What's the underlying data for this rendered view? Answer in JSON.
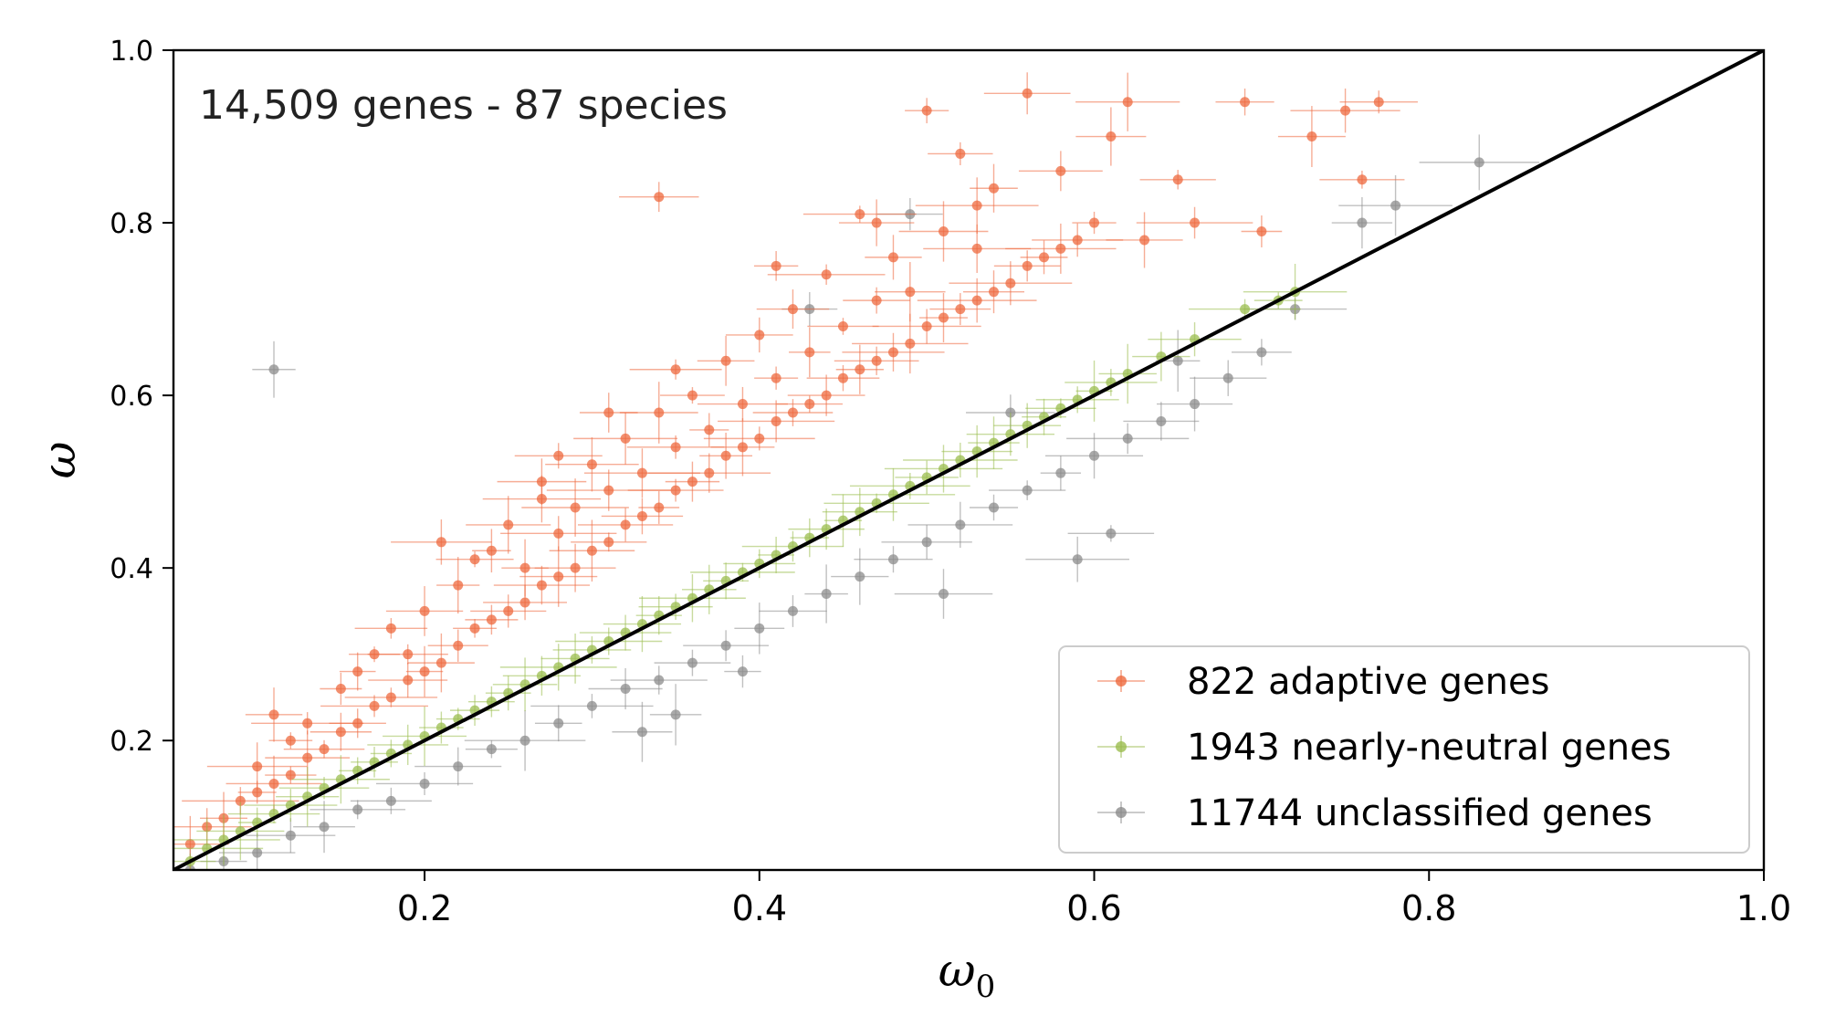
{
  "chart_data": {
    "type": "scatter",
    "annotation": "14,509 genes - 87 species",
    "xlabel": "ω",
    "xlabel_sub": "0",
    "ylabel": "ω",
    "xlim": [
      0.05,
      1.0
    ],
    "ylim": [
      0.05,
      1.0
    ],
    "x_ticks": [
      0.2,
      0.4,
      0.6,
      0.8,
      1.0
    ],
    "x_tick_labels": [
      "0.2",
      "0.4",
      "0.6",
      "0.8",
      "1.0"
    ],
    "y_ticks": [
      0.2,
      0.4,
      0.6,
      0.8,
      1.0
    ],
    "y_tick_labels": [
      "0.2",
      "0.4",
      "0.6",
      "0.8",
      "1.0"
    ],
    "grid": false,
    "legend_position": "bottom-right",
    "reference_line": {
      "type": "identity",
      "x": [
        0.05,
        1.0
      ],
      "y": [
        0.05,
        1.0
      ],
      "color": "#000000"
    },
    "series": [
      {
        "name": "822 adaptive genes",
        "color": "#ee6a3f",
        "count": 822,
        "points": [
          [
            0.06,
            0.08
          ],
          [
            0.07,
            0.1
          ],
          [
            0.08,
            0.11
          ],
          [
            0.09,
            0.13
          ],
          [
            0.1,
            0.14
          ],
          [
            0.1,
            0.17
          ],
          [
            0.11,
            0.15
          ],
          [
            0.11,
            0.23
          ],
          [
            0.12,
            0.16
          ],
          [
            0.12,
            0.2
          ],
          [
            0.13,
            0.18
          ],
          [
            0.13,
            0.22
          ],
          [
            0.14,
            0.19
          ],
          [
            0.15,
            0.21
          ],
          [
            0.15,
            0.26
          ],
          [
            0.16,
            0.22
          ],
          [
            0.17,
            0.24
          ],
          [
            0.17,
            0.3
          ],
          [
            0.18,
            0.25
          ],
          [
            0.18,
            0.33
          ],
          [
            0.19,
            0.27
          ],
          [
            0.2,
            0.28
          ],
          [
            0.2,
            0.35
          ],
          [
            0.21,
            0.29
          ],
          [
            0.21,
            0.43
          ],
          [
            0.22,
            0.31
          ],
          [
            0.22,
            0.38
          ],
          [
            0.23,
            0.33
          ],
          [
            0.24,
            0.34
          ],
          [
            0.24,
            0.42
          ],
          [
            0.25,
            0.35
          ],
          [
            0.25,
            0.45
          ],
          [
            0.26,
            0.36
          ],
          [
            0.26,
            0.4
          ],
          [
            0.27,
            0.38
          ],
          [
            0.27,
            0.48
          ],
          [
            0.28,
            0.39
          ],
          [
            0.28,
            0.44
          ],
          [
            0.29,
            0.4
          ],
          [
            0.29,
            0.47
          ],
          [
            0.3,
            0.42
          ],
          [
            0.3,
            0.52
          ],
          [
            0.31,
            0.43
          ],
          [
            0.31,
            0.49
          ],
          [
            0.32,
            0.45
          ],
          [
            0.32,
            0.55
          ],
          [
            0.33,
            0.46
          ],
          [
            0.33,
            0.51
          ],
          [
            0.34,
            0.47
          ],
          [
            0.34,
            0.58
          ],
          [
            0.35,
            0.49
          ],
          [
            0.35,
            0.54
          ],
          [
            0.36,
            0.5
          ],
          [
            0.36,
            0.6
          ],
          [
            0.37,
            0.51
          ],
          [
            0.37,
            0.56
          ],
          [
            0.38,
            0.53
          ],
          [
            0.38,
            0.64
          ],
          [
            0.39,
            0.54
          ],
          [
            0.39,
            0.59
          ],
          [
            0.4,
            0.55
          ],
          [
            0.4,
            0.67
          ],
          [
            0.41,
            0.57
          ],
          [
            0.41,
            0.62
          ],
          [
            0.42,
            0.58
          ],
          [
            0.42,
            0.7
          ],
          [
            0.43,
            0.59
          ],
          [
            0.43,
            0.65
          ],
          [
            0.44,
            0.6
          ],
          [
            0.44,
            0.74
          ],
          [
            0.45,
            0.62
          ],
          [
            0.45,
            0.68
          ],
          [
            0.46,
            0.63
          ],
          [
            0.46,
            0.81
          ],
          [
            0.47,
            0.64
          ],
          [
            0.47,
            0.71
          ],
          [
            0.48,
            0.65
          ],
          [
            0.48,
            0.76
          ],
          [
            0.49,
            0.66
          ],
          [
            0.49,
            0.72
          ],
          [
            0.5,
            0.68
          ],
          [
            0.5,
            0.93
          ],
          [
            0.51,
            0.69
          ],
          [
            0.51,
            0.79
          ],
          [
            0.52,
            0.7
          ],
          [
            0.52,
            0.88
          ],
          [
            0.53,
            0.71
          ],
          [
            0.53,
            0.77
          ],
          [
            0.54,
            0.72
          ],
          [
            0.54,
            0.84
          ],
          [
            0.55,
            0.73
          ],
          [
            0.56,
            0.75
          ],
          [
            0.56,
            0.95
          ],
          [
            0.57,
            0.76
          ],
          [
            0.58,
            0.77
          ],
          [
            0.58,
            0.86
          ],
          [
            0.59,
            0.78
          ],
          [
            0.6,
            0.8
          ],
          [
            0.61,
            0.9
          ],
          [
            0.62,
            0.94
          ],
          [
            0.63,
            0.78
          ],
          [
            0.65,
            0.85
          ],
          [
            0.66,
            0.8
          ],
          [
            0.69,
            0.94
          ],
          [
            0.7,
            0.79
          ],
          [
            0.73,
            0.9
          ],
          [
            0.75,
            0.93
          ],
          [
            0.76,
            0.85
          ],
          [
            0.77,
            0.94
          ],
          [
            0.34,
            0.83
          ],
          [
            0.31,
            0.58
          ],
          [
            0.28,
            0.53
          ],
          [
            0.27,
            0.5
          ],
          [
            0.19,
            0.3
          ],
          [
            0.16,
            0.28
          ],
          [
            0.23,
            0.41
          ],
          [
            0.35,
            0.63
          ],
          [
            0.41,
            0.75
          ],
          [
            0.47,
            0.8
          ],
          [
            0.53,
            0.82
          ]
        ]
      },
      {
        "name": "1943 nearly-neutral genes",
        "color": "#9bbd4f",
        "count": 1943,
        "points": [
          [
            0.06,
            0.06
          ],
          [
            0.07,
            0.075
          ],
          [
            0.08,
            0.085
          ],
          [
            0.09,
            0.095
          ],
          [
            0.1,
            0.105
          ],
          [
            0.11,
            0.115
          ],
          [
            0.12,
            0.125
          ],
          [
            0.13,
            0.135
          ],
          [
            0.14,
            0.145
          ],
          [
            0.15,
            0.155
          ],
          [
            0.16,
            0.165
          ],
          [
            0.17,
            0.175
          ],
          [
            0.18,
            0.185
          ],
          [
            0.19,
            0.195
          ],
          [
            0.2,
            0.205
          ],
          [
            0.21,
            0.215
          ],
          [
            0.22,
            0.225
          ],
          [
            0.23,
            0.235
          ],
          [
            0.24,
            0.245
          ],
          [
            0.25,
            0.255
          ],
          [
            0.26,
            0.265
          ],
          [
            0.27,
            0.275
          ],
          [
            0.28,
            0.285
          ],
          [
            0.29,
            0.295
          ],
          [
            0.3,
            0.305
          ],
          [
            0.31,
            0.315
          ],
          [
            0.32,
            0.325
          ],
          [
            0.33,
            0.335
          ],
          [
            0.34,
            0.345
          ],
          [
            0.35,
            0.355
          ],
          [
            0.36,
            0.365
          ],
          [
            0.37,
            0.375
          ],
          [
            0.38,
            0.385
          ],
          [
            0.39,
            0.395
          ],
          [
            0.4,
            0.405
          ],
          [
            0.41,
            0.415
          ],
          [
            0.42,
            0.425
          ],
          [
            0.43,
            0.435
          ],
          [
            0.44,
            0.445
          ],
          [
            0.45,
            0.455
          ],
          [
            0.46,
            0.465
          ],
          [
            0.47,
            0.475
          ],
          [
            0.48,
            0.485
          ],
          [
            0.49,
            0.495
          ],
          [
            0.5,
            0.505
          ],
          [
            0.51,
            0.515
          ],
          [
            0.52,
            0.525
          ],
          [
            0.53,
            0.535
          ],
          [
            0.54,
            0.545
          ],
          [
            0.55,
            0.555
          ],
          [
            0.56,
            0.565
          ],
          [
            0.57,
            0.575
          ],
          [
            0.58,
            0.585
          ],
          [
            0.59,
            0.595
          ],
          [
            0.6,
            0.605
          ],
          [
            0.61,
            0.615
          ],
          [
            0.62,
            0.625
          ],
          [
            0.64,
            0.645
          ],
          [
            0.66,
            0.665
          ],
          [
            0.69,
            0.7
          ],
          [
            0.71,
            0.71
          ],
          [
            0.72,
            0.72
          ]
        ]
      },
      {
        "name": "11744 unclassified genes",
        "color": "#8c8c8c",
        "count": 11744,
        "points": [
          [
            0.06,
            0.05
          ],
          [
            0.08,
            0.06
          ],
          [
            0.1,
            0.07
          ],
          [
            0.11,
            0.63
          ],
          [
            0.12,
            0.09
          ],
          [
            0.14,
            0.1
          ],
          [
            0.16,
            0.12
          ],
          [
            0.18,
            0.13
          ],
          [
            0.2,
            0.15
          ],
          [
            0.22,
            0.17
          ],
          [
            0.24,
            0.19
          ],
          [
            0.26,
            0.2
          ],
          [
            0.28,
            0.22
          ],
          [
            0.3,
            0.24
          ],
          [
            0.32,
            0.26
          ],
          [
            0.34,
            0.27
          ],
          [
            0.35,
            0.23
          ],
          [
            0.36,
            0.29
          ],
          [
            0.38,
            0.31
          ],
          [
            0.4,
            0.33
          ],
          [
            0.42,
            0.35
          ],
          [
            0.44,
            0.37
          ],
          [
            0.46,
            0.39
          ],
          [
            0.48,
            0.41
          ],
          [
            0.5,
            0.43
          ],
          [
            0.52,
            0.45
          ],
          [
            0.54,
            0.47
          ],
          [
            0.56,
            0.49
          ],
          [
            0.58,
            0.51
          ],
          [
            0.6,
            0.53
          ],
          [
            0.62,
            0.55
          ],
          [
            0.64,
            0.57
          ],
          [
            0.66,
            0.59
          ],
          [
            0.68,
            0.62
          ],
          [
            0.7,
            0.65
          ],
          [
            0.72,
            0.7
          ],
          [
            0.76,
            0.8
          ],
          [
            0.78,
            0.82
          ],
          [
            0.83,
            0.87
          ],
          [
            0.59,
            0.41
          ],
          [
            0.61,
            0.44
          ],
          [
            0.49,
            0.81
          ],
          [
            0.43,
            0.7
          ],
          [
            0.51,
            0.37
          ],
          [
            0.33,
            0.21
          ],
          [
            0.39,
            0.28
          ],
          [
            0.55,
            0.58
          ],
          [
            0.65,
            0.64
          ]
        ]
      }
    ]
  }
}
